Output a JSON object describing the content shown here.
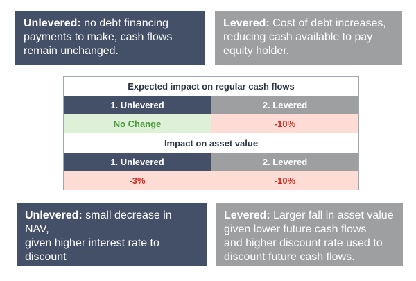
{
  "top_boxes": {
    "unlevered": {
      "lead": "Unlevered:",
      "lines": [
        "no debt financing",
        "payments to make, cash flows",
        "remain unchanged."
      ]
    },
    "levered": {
      "lead": "Levered:",
      "lines": [
        "Cost of debt increases,",
        "reducing cash available to pay",
        "equity holder."
      ]
    }
  },
  "table": {
    "section1": {
      "title": "Expected impact on regular cash flows",
      "col1": "1. Unlevered",
      "col2": "2. Levered",
      "val1": "No Change",
      "val2": "-10%"
    },
    "section2": {
      "title": "Impact on asset value",
      "col1": "1. Unlevered",
      "col2": "2. Levered",
      "val1": "-3%",
      "val2": "-10%"
    }
  },
  "bottom_boxes": {
    "unlevered": {
      "lead": "Unlevered:",
      "lines": [
        "small decrease in NAV,",
        "given higher interest rate to discount",
        "future cash flows."
      ]
    },
    "levered": {
      "lead": "Levered:",
      "lines": [
        "Larger fall in asset value",
        "given lower future cash flows",
        "and higher discount rate used to",
        "discount future cash flows."
      ]
    }
  },
  "colors": {
    "navy": "#435067",
    "grey": "#9d9fa1",
    "green_text": "#4a9a3b",
    "green_fill": "#dff0d8",
    "red_text": "#d42a20",
    "red_fill": "#fcdcd4"
  }
}
